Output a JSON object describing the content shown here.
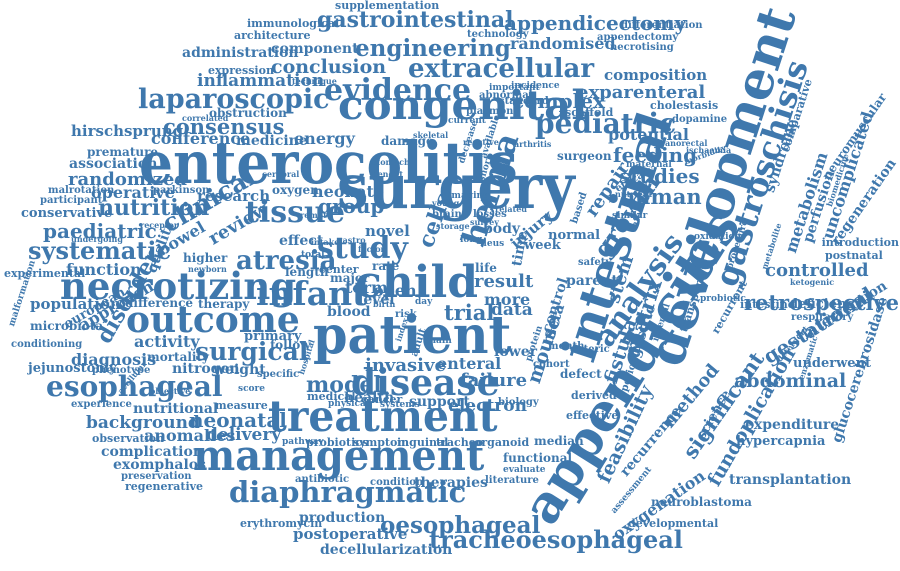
{
  "colors": {
    "word": "#3f78ad",
    "background": "#ffffff"
  },
  "words": [
    {
      "text": "supplementation"
    },
    {
      "text": "immunological"
    },
    {
      "text": "technology"
    },
    {
      "text": "appendectomy"
    },
    {
      "text": "architecture"
    },
    {
      "text": "gastrointestinal"
    },
    {
      "text": "appendicectomy"
    },
    {
      "text": "differentiation"
    },
    {
      "text": "randomised"
    },
    {
      "text": "necrotising"
    },
    {
      "text": "administration"
    },
    {
      "text": "component"
    },
    {
      "text": "engineering"
    },
    {
      "text": "expression"
    },
    {
      "text": "conclusion"
    },
    {
      "text": "extracellular"
    },
    {
      "text": "composition"
    },
    {
      "text": "inflammation"
    },
    {
      "text": "evidence"
    },
    {
      "text": "technique"
    },
    {
      "text": "congenital"
    },
    {
      "text": "complex"
    },
    {
      "text": "exparenteral"
    },
    {
      "text": "laparoscopic"
    },
    {
      "text": "cholestasis"
    },
    {
      "text": "obstruction"
    },
    {
      "text": "consensus"
    },
    {
      "text": "pediatric"
    },
    {
      "text": "scaffold"
    },
    {
      "text": "hirschsprung"
    },
    {
      "text": "conference"
    },
    {
      "text": "potential"
    },
    {
      "text": "medicine"
    },
    {
      "text": "energy"
    },
    {
      "text": "premature"
    },
    {
      "text": "enterocolitis"
    },
    {
      "text": "surgeon"
    },
    {
      "text": "feeding"
    },
    {
      "text": "association"
    },
    {
      "text": "randomized"
    },
    {
      "text": "malrotation"
    },
    {
      "text": "parkinson"
    },
    {
      "text": "participant"
    },
    {
      "text": "operative"
    },
    {
      "text": "oxygen"
    },
    {
      "text": "neonate"
    },
    {
      "text": "surgery"
    },
    {
      "text": "studies"
    },
    {
      "text": "human"
    },
    {
      "text": "conservative"
    },
    {
      "text": "nutrition"
    },
    {
      "text": "clinical"
    },
    {
      "text": "research"
    },
    {
      "text": "group"
    },
    {
      "text": "paediatric"
    },
    {
      "text": "tissue"
    },
    {
      "text": "bowel"
    },
    {
      "text": "review"
    },
    {
      "text": "study"
    },
    {
      "text": "hernia"
    },
    {
      "text": "systematic"
    },
    {
      "text": "atresia"
    },
    {
      "text": "cells"
    },
    {
      "text": "growth"
    },
    {
      "text": "repair"
    },
    {
      "text": "necrotizing"
    },
    {
      "text": "child"
    },
    {
      "text": "infant"
    },
    {
      "text": "function"
    },
    {
      "text": "experimental"
    },
    {
      "text": "approach"
    },
    {
      "text": "population"
    },
    {
      "text": "outcome"
    },
    {
      "text": "difference"
    },
    {
      "text": "therapy"
    },
    {
      "text": "result"
    },
    {
      "text": "trial"
    },
    {
      "text": "data"
    },
    {
      "text": "disorder"
    },
    {
      "text": "european"
    },
    {
      "text": "microbiota"
    },
    {
      "text": "activity"
    },
    {
      "text": "surgical"
    },
    {
      "text": "patient"
    },
    {
      "text": "diagnosis"
    },
    {
      "text": "mortality"
    },
    {
      "text": "nitrogen"
    },
    {
      "text": "weight"
    },
    {
      "text": "jejunostomy"
    },
    {
      "text": "phenotype"
    },
    {
      "text": "esophageal"
    },
    {
      "text": "disease"
    },
    {
      "text": "model"
    },
    {
      "text": "invasive"
    },
    {
      "text": "failure"
    },
    {
      "text": "enteral"
    },
    {
      "text": "lower"
    },
    {
      "text": "nutritional"
    },
    {
      "text": "background"
    },
    {
      "text": "neonatal"
    },
    {
      "text": "treatment"
    },
    {
      "text": "support"
    },
    {
      "text": "electron"
    },
    {
      "text": "observation"
    },
    {
      "text": "anomalies"
    },
    {
      "text": "delivery"
    },
    {
      "text": "probiotics"
    },
    {
      "text": "symptom"
    },
    {
      "text": "inguinal"
    },
    {
      "text": "tracheo"
    },
    {
      "text": "organoid"
    },
    {
      "text": "complication"
    },
    {
      "text": "management"
    },
    {
      "text": "exomphalos"
    },
    {
      "text": "preservation"
    },
    {
      "text": "regenerative"
    },
    {
      "text": "antibiotic"
    },
    {
      "text": "condition"
    },
    {
      "text": "therapies"
    },
    {
      "text": "literature"
    },
    {
      "text": "diaphragmatic"
    },
    {
      "text": "erythromycin"
    },
    {
      "text": "production"
    },
    {
      "text": "postoperative"
    },
    {
      "text": "oesophageal"
    },
    {
      "text": "decellularization"
    },
    {
      "text": "tracheoesophageal"
    },
    {
      "text": "appendicitis"
    },
    {
      "text": "intestinal"
    },
    {
      "text": "development"
    },
    {
      "text": "gastroschisis"
    },
    {
      "text": "analysis"
    },
    {
      "text": "feasibility"
    },
    {
      "text": "recurrence"
    },
    {
      "text": "method"
    },
    {
      "text": "oxygenation"
    },
    {
      "text": "significant"
    },
    {
      "text": "fundoplication"
    },
    {
      "text": "transplantation"
    },
    {
      "text": "hypercapnia"
    },
    {
      "text": "expenditure"
    },
    {
      "text": "neuroblastoma"
    },
    {
      "text": "developmental"
    },
    {
      "text": "abdominal"
    },
    {
      "text": "retrospective"
    },
    {
      "text": "controlled"
    },
    {
      "text": "gestational"
    },
    {
      "text": "deficiency"
    },
    {
      "text": "intervention"
    },
    {
      "text": "underwent"
    },
    {
      "text": "glucocerebrosidase"
    },
    {
      "text": "uncomplicated"
    },
    {
      "text": "regeneration"
    },
    {
      "text": "introduction"
    },
    {
      "text": "postnatal"
    },
    {
      "text": "respiratory"
    },
    {
      "text": "metabolism"
    },
    {
      "text": "perfusion"
    },
    {
      "text": "neuromuscular"
    },
    {
      "text": "syndrome"
    },
    {
      "text": "comparative"
    },
    {
      "text": "dopamine"
    },
    {
      "text": "intestine"
    },
    {
      "text": "fistula"
    },
    {
      "text": "matrix"
    },
    {
      "text": "gastric"
    },
    {
      "text": "stem"
    },
    {
      "text": "meta"
    },
    {
      "text": "control"
    },
    {
      "text": "mouse"
    },
    {
      "text": "body"
    },
    {
      "text": "injury"
    },
    {
      "text": "parent"
    },
    {
      "text": "more"
    },
    {
      "text": "blood"
    },
    {
      "text": "term"
    },
    {
      "text": "open"
    },
    {
      "text": "level"
    },
    {
      "text": "rate"
    },
    {
      "text": "novel"
    },
    {
      "text": "week"
    },
    {
      "text": "normal"
    },
    {
      "text": "defect"
    },
    {
      "text": "derived"
    },
    {
      "text": "effective"
    },
    {
      "text": "median"
    },
    {
      "text": "functional"
    },
    {
      "text": "evaluate"
    },
    {
      "text": "medical"
    },
    {
      "text": "health"
    },
    {
      "text": "measure"
    },
    {
      "text": "experience"
    },
    {
      "text": "pathway"
    },
    {
      "text": "primary"
    },
    {
      "text": "quality"
    },
    {
      "text": "effect"
    },
    {
      "text": "higher"
    },
    {
      "text": "length"
    },
    {
      "text": "life"
    },
    {
      "text": "cohort"
    },
    {
      "text": "month"
    },
    {
      "text": "enteric"
    },
    {
      "text": "biology"
    },
    {
      "text": "systems"
    },
    {
      "text": "follow"
    },
    {
      "text": "specific"
    },
    {
      "text": "center"
    },
    {
      "text": "major"
    },
    {
      "text": "time"
    },
    {
      "text": "safety"
    },
    {
      "text": "conditioning"
    },
    {
      "text": "malformation"
    },
    {
      "text": "undergoing"
    },
    {
      "text": "receptor"
    },
    {
      "text": "newborn"
    },
    {
      "text": "acellular"
    },
    {
      "text": "objective"
    },
    {
      "text": "score"
    },
    {
      "text": "cancer"
    },
    {
      "text": "physical"
    },
    {
      "text": "incidence"
    },
    {
      "text": "important"
    },
    {
      "text": "abnormal"
    },
    {
      "text": "standard"
    },
    {
      "text": "plasmon"
    },
    {
      "text": "current"
    },
    {
      "text": "skeletal"
    },
    {
      "text": "damage"
    },
    {
      "text": "stomach"
    },
    {
      "text": "benefit"
    },
    {
      "text": "decrease"
    },
    {
      "text": "arthritis"
    },
    {
      "text": "available"
    },
    {
      "text": "oxidation"
    },
    {
      "text": "probiotic"
    },
    {
      "text": "transport"
    },
    {
      "text": "recurrent"
    },
    {
      "text": "ketogenic"
    },
    {
      "text": "metabolite"
    },
    {
      "text": "procedure"
    },
    {
      "text": "detergent"
    },
    {
      "text": "enzymatic"
    },
    {
      "text": "biomedicine"
    },
    {
      "text": "ischaemia"
    },
    {
      "text": "morbidity"
    },
    {
      "text": "anorectal"
    },
    {
      "text": "maternal"
    },
    {
      "text": "infection"
    },
    {
      "text": "similar"
    },
    {
      "text": "losses"
    },
    {
      "text": "related"
    },
    {
      "text": "survey"
    },
    {
      "text": "brain"
    },
    {
      "text": "young"
    },
    {
      "text": "storage"
    },
    {
      "text": "remote"
    },
    {
      "text": "intake"
    },
    {
      "text": "gastro"
    },
    {
      "text": "total"
    },
    {
      "text": "factor"
    },
    {
      "text": "index"
    },
    {
      "text": "adult"
    },
    {
      "text": "chain"
    },
    {
      "text": "hospital"
    },
    {
      "text": "birth"
    },
    {
      "text": "risk"
    },
    {
      "text": "day"
    },
    {
      "text": "protein"
    },
    {
      "text": "period"
    },
    {
      "text": "interval"
    },
    {
      "text": "science"
    },
    {
      "text": "assessment"
    },
    {
      "text": "efficacy"
    },
    {
      "text": "correlated"
    },
    {
      "text": "cerebral"
    },
    {
      "text": "reactive"
    },
    {
      "text": "nutrient"
    },
    {
      "text": "long"
    },
    {
      "text": "based"
    },
    {
      "text": "ileus"
    },
    {
      "text": "short"
    },
    {
      "text": "imaging"
    }
  ]
}
